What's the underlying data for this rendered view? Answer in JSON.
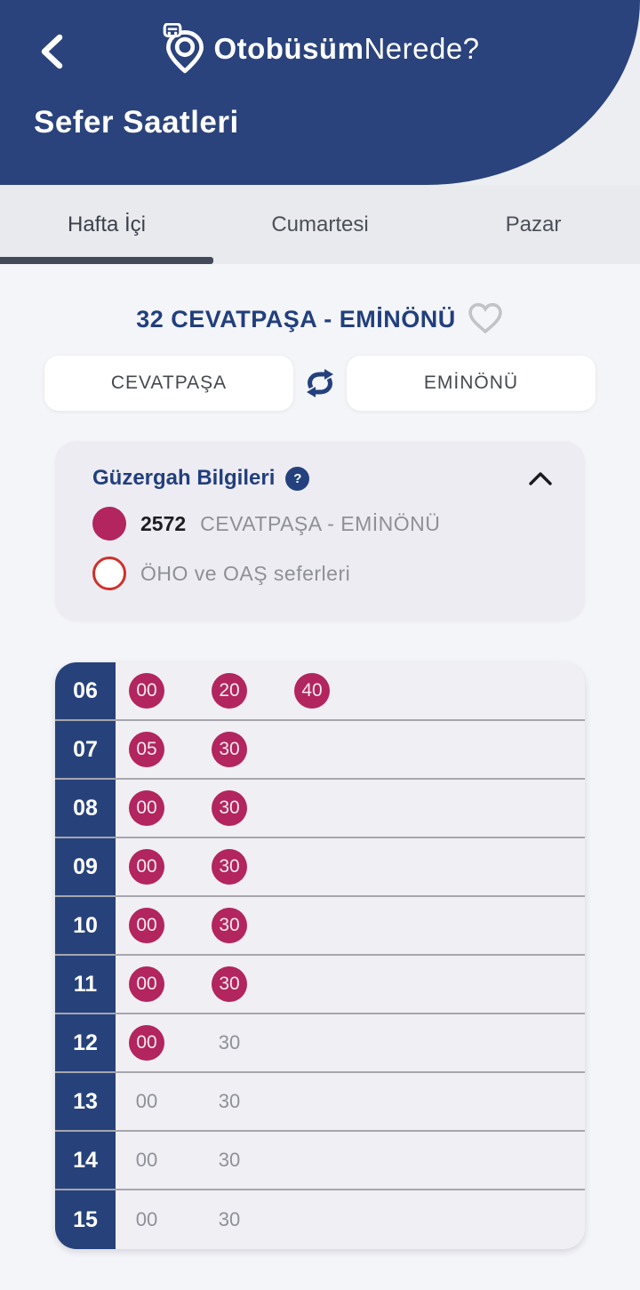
{
  "header": {
    "logo": {
      "bold": "Otobüsüm",
      "light": "Nerede?"
    },
    "title": "Sefer Saatleri"
  },
  "tabs": {
    "items": [
      {
        "label": "Hafta İçi",
        "active": true
      },
      {
        "label": "Cumartesi",
        "active": false
      },
      {
        "label": "Pazar",
        "active": false
      }
    ]
  },
  "route": {
    "title": "32 CEVATPAŞA - EMİNÖNÜ",
    "from_label": "CEVATPAŞA",
    "to_label": "EMİNÖNÜ"
  },
  "info_card": {
    "title": "Güzergah Bilgileri",
    "help_label": "?",
    "legend": [
      {
        "type": "filled",
        "color": "#b2255e",
        "code": "2572",
        "label": "CEVATPAŞA -  EMİNÖNÜ"
      },
      {
        "type": "outline",
        "border_color": "#d0302c",
        "code": "",
        "label": "ÖHO ve OAŞ seferleri"
      }
    ]
  },
  "schedule": {
    "hours": [
      {
        "hour": "06",
        "times": [
          {
            "t": "00",
            "style": "badge"
          },
          {
            "t": "20",
            "style": "badge"
          },
          {
            "t": "40",
            "style": "badge"
          }
        ]
      },
      {
        "hour": "07",
        "times": [
          {
            "t": "05",
            "style": "badge"
          },
          {
            "t": "30",
            "style": "badge"
          }
        ]
      },
      {
        "hour": "08",
        "times": [
          {
            "t": "00",
            "style": "badge"
          },
          {
            "t": "30",
            "style": "badge"
          }
        ]
      },
      {
        "hour": "09",
        "times": [
          {
            "t": "00",
            "style": "badge"
          },
          {
            "t": "30",
            "style": "badge"
          }
        ]
      },
      {
        "hour": "10",
        "times": [
          {
            "t": "00",
            "style": "badge"
          },
          {
            "t": "30",
            "style": "badge"
          }
        ]
      },
      {
        "hour": "11",
        "times": [
          {
            "t": "00",
            "style": "badge"
          },
          {
            "t": "30",
            "style": "badge"
          }
        ]
      },
      {
        "hour": "12",
        "times": [
          {
            "t": "00",
            "style": "badge"
          },
          {
            "t": "30",
            "style": "plain"
          }
        ]
      },
      {
        "hour": "13",
        "times": [
          {
            "t": "00",
            "style": "plain"
          },
          {
            "t": "30",
            "style": "plain"
          }
        ]
      },
      {
        "hour": "14",
        "times": [
          {
            "t": "00",
            "style": "plain"
          },
          {
            "t": "30",
            "style": "plain"
          }
        ]
      },
      {
        "hour": "15",
        "times": [
          {
            "t": "00",
            "style": "plain"
          },
          {
            "t": "30",
            "style": "plain"
          }
        ]
      }
    ]
  },
  "colors": {
    "header_blue": "#2a437c",
    "navy_text": "#223f7d",
    "badge_magenta": "#b2255e",
    "outline_red": "#d0302c",
    "tab_bg": "#e9eaee",
    "page_bg": "#f4f5f8",
    "card_bg": "#edecf2",
    "hour_cell_blue": "#27427b"
  }
}
